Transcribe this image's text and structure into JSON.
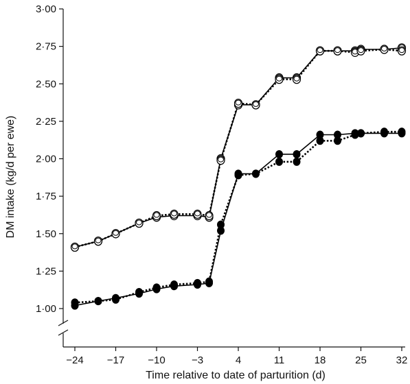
{
  "chart_data": {
    "type": "line",
    "xlabel": "Time relative to date of parturition (d)",
    "ylabel": "DM intake (kg/d per ewe)",
    "xlim": [
      -26,
      32
    ],
    "ylim": [
      0.85,
      3.0
    ],
    "x_ticks": [
      -24,
      -17,
      -10,
      -3,
      4,
      11,
      18,
      25,
      32
    ],
    "x_tick_labels": [
      "−24",
      "−17",
      "−10",
      "−3",
      "4",
      "11",
      "18",
      "25",
      "32"
    ],
    "y_ticks": [
      1.0,
      1.25,
      1.5,
      1.75,
      2.0,
      2.25,
      2.5,
      2.75,
      3.0
    ],
    "y_tick_labels": [
      "1·00",
      "1·25",
      "1·50",
      "1·75",
      "2·00",
      "2·25",
      "2·50",
      "2·75",
      "3·00"
    ],
    "y_axis_break": true,
    "grid": false,
    "series": [
      {
        "marker": "double-open-circle",
        "line": "solid",
        "color": "#000000",
        "x": [
          -24,
          -20,
          -17,
          -13,
          -10,
          -7,
          -3,
          -1,
          1,
          4,
          7,
          11,
          14,
          18,
          21,
          24,
          25,
          29,
          32
        ],
        "y": [
          1.41,
          1.45,
          1.5,
          1.57,
          1.61,
          1.62,
          1.62,
          1.61,
          2.0,
          2.36,
          2.36,
          2.54,
          2.54,
          2.72,
          2.72,
          2.72,
          2.73,
          2.73,
          2.74
        ]
      },
      {
        "marker": "double-open-circle",
        "line": "dotted",
        "color": "#000000",
        "x": [
          -24,
          -20,
          -17,
          -13,
          -10,
          -7,
          -3,
          -1,
          1,
          4,
          7,
          11,
          14,
          18,
          21,
          24,
          25,
          29,
          32
        ],
        "y": [
          1.41,
          1.45,
          1.5,
          1.57,
          1.62,
          1.63,
          1.63,
          1.62,
          1.99,
          2.37,
          2.36,
          2.53,
          2.53,
          2.72,
          2.72,
          2.71,
          2.72,
          2.73,
          2.72
        ]
      },
      {
        "marker": "filled-circle",
        "line": "solid",
        "color": "#000000",
        "x": [
          -24,
          -20,
          -17,
          -13,
          -10,
          -7,
          -3,
          -1,
          1,
          4,
          7,
          11,
          14,
          18,
          21,
          24,
          25,
          29,
          32
        ],
        "y": [
          1.02,
          1.05,
          1.07,
          1.1,
          1.13,
          1.15,
          1.16,
          1.17,
          1.52,
          1.9,
          1.9,
          2.03,
          2.03,
          2.16,
          2.16,
          2.17,
          2.17,
          2.17,
          2.17
        ]
      },
      {
        "marker": "filled-circle",
        "line": "dotted",
        "color": "#000000",
        "x": [
          -24,
          -20,
          -17,
          -13,
          -10,
          -7,
          -3,
          -1,
          1,
          4,
          7,
          11,
          14,
          18,
          21,
          24,
          25,
          29,
          32
        ],
        "y": [
          1.04,
          1.05,
          1.06,
          1.11,
          1.14,
          1.16,
          1.17,
          1.18,
          1.56,
          1.89,
          1.9,
          1.98,
          1.98,
          2.12,
          2.12,
          2.16,
          2.17,
          2.18,
          2.18
        ]
      }
    ]
  }
}
